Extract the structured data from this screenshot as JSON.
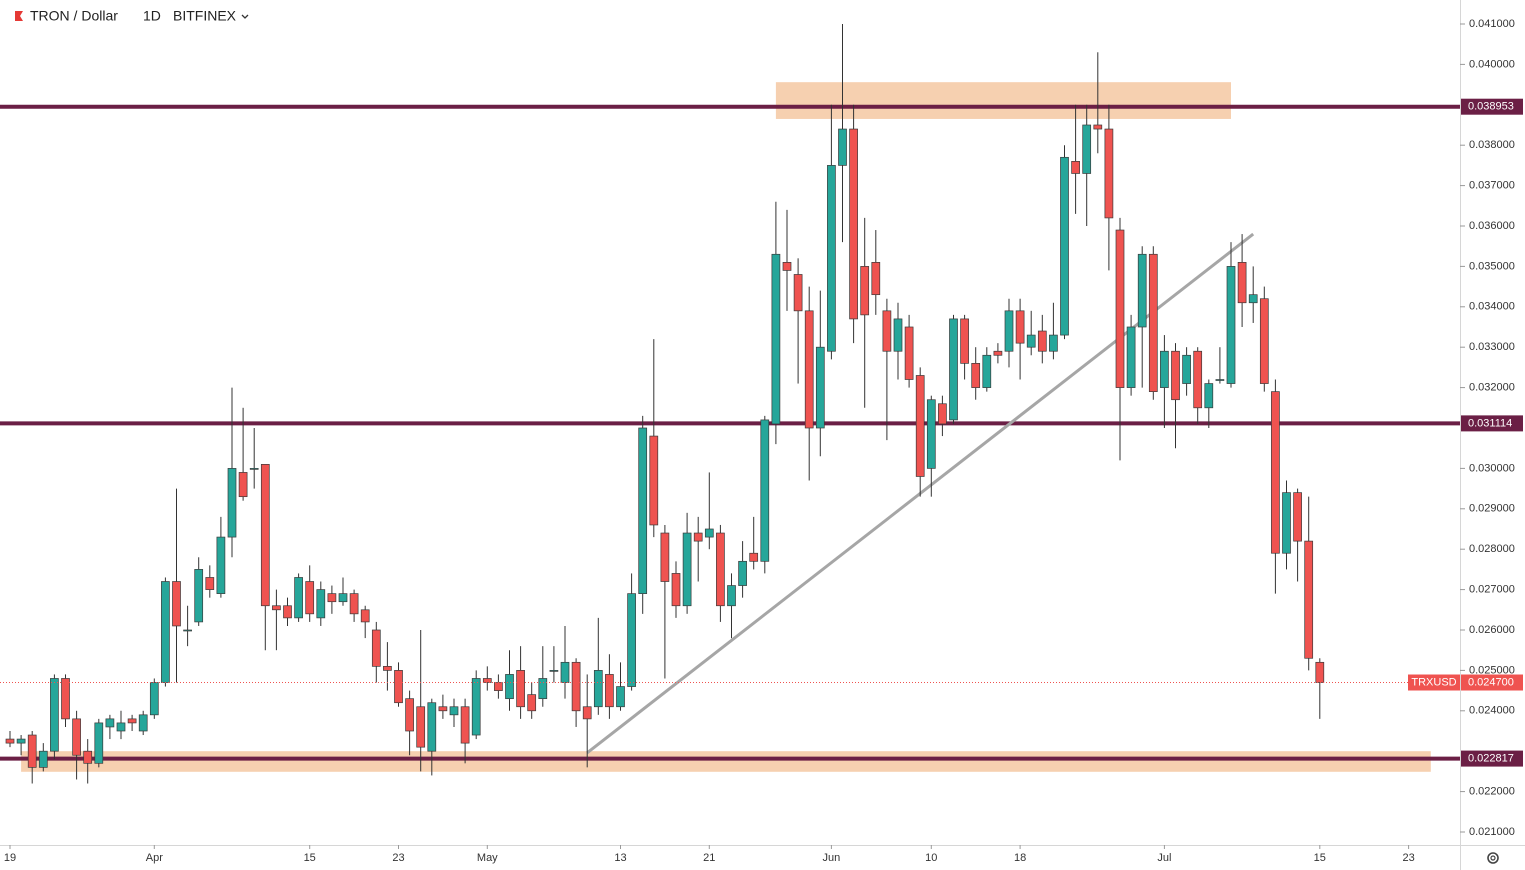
{
  "chart_data": {
    "type": "candlestick",
    "symbol": "TRON / Dollar",
    "interval": "1D",
    "exchange": "BITFINEX",
    "categories": [
      "Mar 19",
      "Mar 20",
      "Mar 21",
      "Mar 22",
      "Mar 23",
      "Mar 24",
      "Mar 25",
      "Mar 26",
      "Mar 27",
      "Mar 28",
      "Mar 29",
      "Mar 30",
      "Mar 31",
      "Apr 1",
      "Apr 2",
      "Apr 3",
      "Apr 4",
      "Apr 5",
      "Apr 6",
      "Apr 7",
      "Apr 8",
      "Apr 9",
      "Apr 10",
      "Apr 11",
      "Apr 12",
      "Apr 13",
      "Apr 14",
      "Apr 15",
      "Apr 16",
      "Apr 17",
      "Apr 18",
      "Apr 19",
      "Apr 20",
      "Apr 21",
      "Apr 22",
      "Apr 23",
      "Apr 24",
      "Apr 25",
      "Apr 26",
      "Apr 27",
      "Apr 28",
      "Apr 29",
      "Apr 30",
      "May 1",
      "May 2",
      "May 3",
      "May 4",
      "May 5",
      "May 6",
      "May 7",
      "May 8",
      "May 9",
      "May 10",
      "May 11",
      "May 12",
      "May 13",
      "May 14",
      "May 15",
      "May 16",
      "May 17",
      "May 18",
      "May 19",
      "May 20",
      "May 21",
      "May 22",
      "May 23",
      "May 24",
      "May 25",
      "May 26",
      "May 27",
      "May 28",
      "May 29",
      "May 30",
      "May 31",
      "Jun 1",
      "Jun 2",
      "Jun 3",
      "Jun 4",
      "Jun 5",
      "Jun 6",
      "Jun 7",
      "Jun 8",
      "Jun 9",
      "Jun 10",
      "Jun 11",
      "Jun 12",
      "Jun 13",
      "Jun 14",
      "Jun 15",
      "Jun 16",
      "Jun 17",
      "Jun 18",
      "Jun 19",
      "Jun 20",
      "Jun 21",
      "Jun 22",
      "Jun 23",
      "Jun 24",
      "Jun 25",
      "Jun 26",
      "Jun 27",
      "Jun 28",
      "Jun 29",
      "Jun 30",
      "Jul 1",
      "Jul 2",
      "Jul 3",
      "Jul 4",
      "Jul 5",
      "Jul 6",
      "Jul 7",
      "Jul 8",
      "Jul 9",
      "Jul 10",
      "Jul 11",
      "Jul 12",
      "Jul 13",
      "Jul 14",
      "Jul 15"
    ],
    "candles": [
      [
        0.0233,
        0.0235,
        0.0231,
        0.0232
      ],
      [
        0.0232,
        0.0234,
        0.0229,
        0.0233
      ],
      [
        0.0234,
        0.0235,
        0.0222,
        0.0226
      ],
      [
        0.0226,
        0.0232,
        0.0225,
        0.023
      ],
      [
        0.023,
        0.0249,
        0.0228,
        0.0248
      ],
      [
        0.0248,
        0.0249,
        0.0236,
        0.0238
      ],
      [
        0.0238,
        0.024,
        0.0223,
        0.0229
      ],
      [
        0.023,
        0.0233,
        0.0222,
        0.0227
      ],
      [
        0.0227,
        0.0238,
        0.0226,
        0.0237
      ],
      [
        0.0236,
        0.0239,
        0.0233,
        0.0238
      ],
      [
        0.0235,
        0.024,
        0.0233,
        0.0237
      ],
      [
        0.0238,
        0.0239,
        0.0235,
        0.0237
      ],
      [
        0.0235,
        0.024,
        0.0234,
        0.0239
      ],
      [
        0.0239,
        0.0248,
        0.0238,
        0.0247
      ],
      [
        0.0247,
        0.0273,
        0.0246,
        0.0272
      ],
      [
        0.0272,
        0.0295,
        0.0247,
        0.0261
      ],
      [
        0.026,
        0.0266,
        0.0256,
        0.026
      ],
      [
        0.0262,
        0.0278,
        0.0261,
        0.0275
      ],
      [
        0.0273,
        0.0276,
        0.0268,
        0.027
      ],
      [
        0.0269,
        0.0288,
        0.0268,
        0.0283
      ],
      [
        0.0283,
        0.032,
        0.0278,
        0.03
      ],
      [
        0.0299,
        0.0315,
        0.0292,
        0.0293
      ],
      [
        0.03,
        0.031,
        0.0295,
        0.03
      ],
      [
        0.0301,
        0.0301,
        0.0255,
        0.0266
      ],
      [
        0.0266,
        0.027,
        0.0255,
        0.0265
      ],
      [
        0.0266,
        0.0268,
        0.0261,
        0.0263
      ],
      [
        0.0263,
        0.0274,
        0.0262,
        0.0273
      ],
      [
        0.0272,
        0.0276,
        0.0262,
        0.0264
      ],
      [
        0.0263,
        0.0272,
        0.0261,
        0.027
      ],
      [
        0.0269,
        0.0271,
        0.0264,
        0.0267
      ],
      [
        0.0267,
        0.0273,
        0.0266,
        0.0269
      ],
      [
        0.0269,
        0.027,
        0.0262,
        0.0264
      ],
      [
        0.0265,
        0.0266,
        0.0258,
        0.0262
      ],
      [
        0.026,
        0.0262,
        0.0247,
        0.0251
      ],
      [
        0.0251,
        0.0257,
        0.0245,
        0.025
      ],
      [
        0.025,
        0.0252,
        0.0241,
        0.0242
      ],
      [
        0.0243,
        0.0245,
        0.0229,
        0.0235
      ],
      [
        0.0241,
        0.026,
        0.0225,
        0.0231
      ],
      [
        0.023,
        0.0243,
        0.0224,
        0.0242
      ],
      [
        0.0241,
        0.0244,
        0.0238,
        0.024
      ],
      [
        0.0239,
        0.0243,
        0.0236,
        0.0241
      ],
      [
        0.0241,
        0.0243,
        0.0227,
        0.0232
      ],
      [
        0.0234,
        0.025,
        0.0233,
        0.0248
      ],
      [
        0.0248,
        0.0251,
        0.0245,
        0.0247
      ],
      [
        0.0247,
        0.0249,
        0.0243,
        0.0245
      ],
      [
        0.0243,
        0.0255,
        0.024,
        0.0249
      ],
      [
        0.025,
        0.0256,
        0.0238,
        0.0241
      ],
      [
        0.0244,
        0.0247,
        0.0238,
        0.024
      ],
      [
        0.0243,
        0.0256,
        0.0241,
        0.0248
      ],
      [
        0.025,
        0.0256,
        0.0247,
        0.025
      ],
      [
        0.0247,
        0.0261,
        0.0243,
        0.0252
      ],
      [
        0.0252,
        0.0253,
        0.0236,
        0.024
      ],
      [
        0.0241,
        0.0249,
        0.0226,
        0.0238
      ],
      [
        0.0241,
        0.0263,
        0.0239,
        0.025
      ],
      [
        0.0249,
        0.0254,
        0.0238,
        0.0241
      ],
      [
        0.0241,
        0.0252,
        0.024,
        0.0246
      ],
      [
        0.0246,
        0.0274,
        0.0245,
        0.0269
      ],
      [
        0.0269,
        0.0313,
        0.0264,
        0.031
      ],
      [
        0.0308,
        0.0332,
        0.0283,
        0.0286
      ],
      [
        0.0284,
        0.0286,
        0.0248,
        0.0272
      ],
      [
        0.0274,
        0.0277,
        0.0263,
        0.0266
      ],
      [
        0.0266,
        0.0289,
        0.0264,
        0.0284
      ],
      [
        0.0284,
        0.0288,
        0.0272,
        0.0282
      ],
      [
        0.0283,
        0.0299,
        0.028,
        0.0285
      ],
      [
        0.0284,
        0.0286,
        0.0262,
        0.0266
      ],
      [
        0.0266,
        0.0274,
        0.0258,
        0.0271
      ],
      [
        0.0271,
        0.0282,
        0.0268,
        0.0277
      ],
      [
        0.0279,
        0.0288,
        0.0275,
        0.0277
      ],
      [
        0.0277,
        0.0313,
        0.0274,
        0.0312
      ],
      [
        0.0311,
        0.0366,
        0.0306,
        0.0353
      ],
      [
        0.0351,
        0.0364,
        0.0339,
        0.0349
      ],
      [
        0.0348,
        0.0352,
        0.0321,
        0.0339
      ],
      [
        0.0339,
        0.0345,
        0.0297,
        0.031
      ],
      [
        0.031,
        0.0344,
        0.0303,
        0.033
      ],
      [
        0.0329,
        0.039,
        0.0327,
        0.0375
      ],
      [
        0.0375,
        0.041,
        0.0356,
        0.0384
      ],
      [
        0.0384,
        0.039,
        0.0331,
        0.0337
      ],
      [
        0.035,
        0.0362,
        0.0315,
        0.0338
      ],
      [
        0.0351,
        0.0359,
        0.0338,
        0.0343
      ],
      [
        0.0339,
        0.0342,
        0.0307,
        0.0329
      ],
      [
        0.0329,
        0.0341,
        0.0322,
        0.0337
      ],
      [
        0.0335,
        0.0338,
        0.032,
        0.0322
      ],
      [
        0.0323,
        0.0325,
        0.0293,
        0.0298
      ],
      [
        0.03,
        0.0318,
        0.0293,
        0.0317
      ],
      [
        0.0316,
        0.0318,
        0.0308,
        0.0311
      ],
      [
        0.0312,
        0.0338,
        0.0311,
        0.0337
      ],
      [
        0.0337,
        0.0338,
        0.0322,
        0.0326
      ],
      [
        0.0326,
        0.033,
        0.0317,
        0.032
      ],
      [
        0.032,
        0.033,
        0.0319,
        0.0328
      ],
      [
        0.0329,
        0.0331,
        0.0326,
        0.0328
      ],
      [
        0.0329,
        0.0342,
        0.0325,
        0.0339
      ],
      [
        0.0339,
        0.0342,
        0.0322,
        0.0331
      ],
      [
        0.033,
        0.0339,
        0.0328,
        0.0333
      ],
      [
        0.0334,
        0.0338,
        0.0326,
        0.0329
      ],
      [
        0.0329,
        0.0341,
        0.0327,
        0.0333
      ],
      [
        0.0333,
        0.038,
        0.0332,
        0.0377
      ],
      [
        0.0376,
        0.039,
        0.0363,
        0.0373
      ],
      [
        0.0373,
        0.039,
        0.036,
        0.0385
      ],
      [
        0.0385,
        0.0403,
        0.0378,
        0.0384
      ],
      [
        0.0384,
        0.039,
        0.0349,
        0.0362
      ],
      [
        0.0359,
        0.0362,
        0.0302,
        0.032
      ],
      [
        0.032,
        0.0338,
        0.0318,
        0.0335
      ],
      [
        0.0335,
        0.0355,
        0.032,
        0.0353
      ],
      [
        0.0353,
        0.0355,
        0.0317,
        0.0319
      ],
      [
        0.032,
        0.0333,
        0.031,
        0.0329
      ],
      [
        0.0329,
        0.0331,
        0.0305,
        0.0317
      ],
      [
        0.0321,
        0.033,
        0.0318,
        0.0328
      ],
      [
        0.0329,
        0.033,
        0.0311,
        0.0315
      ],
      [
        0.0315,
        0.0322,
        0.031,
        0.0321
      ],
      [
        0.0322,
        0.033,
        0.0321,
        0.0322
      ],
      [
        0.0321,
        0.0356,
        0.032,
        0.035
      ],
      [
        0.0351,
        0.0358,
        0.0335,
        0.0341
      ],
      [
        0.0341,
        0.035,
        0.0336,
        0.0343
      ],
      [
        0.0342,
        0.0345,
        0.0319,
        0.0321
      ],
      [
        0.0319,
        0.0322,
        0.0269,
        0.0279
      ],
      [
        0.0279,
        0.0297,
        0.0275,
        0.0294
      ],
      [
        0.0294,
        0.0295,
        0.0272,
        0.0282
      ],
      [
        0.0282,
        0.0293,
        0.025,
        0.0253
      ],
      [
        0.0252,
        0.0253,
        0.0238,
        0.0247
      ]
    ],
    "up_color": "#26a69a",
    "down_color": "#ef5350",
    "ylim": [
      0.020678,
      0.041594
    ],
    "yticks": [
      {
        "value": 0.021,
        "label": "0.021000"
      },
      {
        "value": 0.022,
        "label": "0.022000"
      },
      {
        "value": 0.024,
        "label": "0.024000"
      },
      {
        "value": 0.025,
        "label": "0.025000"
      },
      {
        "value": 0.026,
        "label": "0.026000"
      },
      {
        "value": 0.027,
        "label": "0.027000"
      },
      {
        "value": 0.028,
        "label": "0.028000"
      },
      {
        "value": 0.029,
        "label": "0.029000"
      },
      {
        "value": 0.03,
        "label": "0.030000"
      },
      {
        "value": 0.032,
        "label": "0.032000"
      },
      {
        "value": 0.033,
        "label": "0.033000"
      },
      {
        "value": 0.034,
        "label": "0.034000"
      },
      {
        "value": 0.035,
        "label": "0.035000"
      },
      {
        "value": 0.036,
        "label": "0.036000"
      },
      {
        "value": 0.037,
        "label": "0.037000"
      },
      {
        "value": 0.038,
        "label": "0.038000"
      },
      {
        "value": 0.04,
        "label": "0.040000"
      },
      {
        "value": 0.041,
        "label": "0.041000"
      }
    ],
    "xticks": [
      {
        "value": "Mar 19",
        "label": "19"
      },
      {
        "value": "Apr 1",
        "label": "Apr"
      },
      {
        "value": "Apr 15",
        "label": "15"
      },
      {
        "value": "Apr 23",
        "label": "23"
      },
      {
        "value": "May 1",
        "label": "May"
      },
      {
        "value": "May 13",
        "label": "13"
      },
      {
        "value": "May 21",
        "label": "21"
      },
      {
        "value": "Jun 1",
        "label": "Jun"
      },
      {
        "value": "Jun 10",
        "label": "10"
      },
      {
        "value": "Jun 18",
        "label": "18"
      },
      {
        "value": "Jul 1",
        "label": "Jul"
      },
      {
        "value": "Jul 15",
        "label": "15"
      },
      {
        "value": "Jul 23",
        "label": "23"
      }
    ],
    "levels": [
      0.038953,
      0.031114,
      0.022817
    ],
    "level_color": "#6b1f45",
    "zones": [
      {
        "from": "May 27",
        "to": "Jul 7",
        "top": 0.03956,
        "bottom": 0.03865
      },
      {
        "from": "Mar 20",
        "to": "Jul 25",
        "top": 0.023,
        "bottom": 0.02249
      }
    ],
    "zone_color": "#f5cba7",
    "trend_line": {
      "from": "May 10",
      "to": "Jul 9",
      "start": 0.02296,
      "end": 0.0358
    },
    "trend_color": "#a6a6a6",
    "last_price": {
      "value": 0.0247,
      "label": "0.024700"
    },
    "last_price_name": "TRXUSD"
  }
}
